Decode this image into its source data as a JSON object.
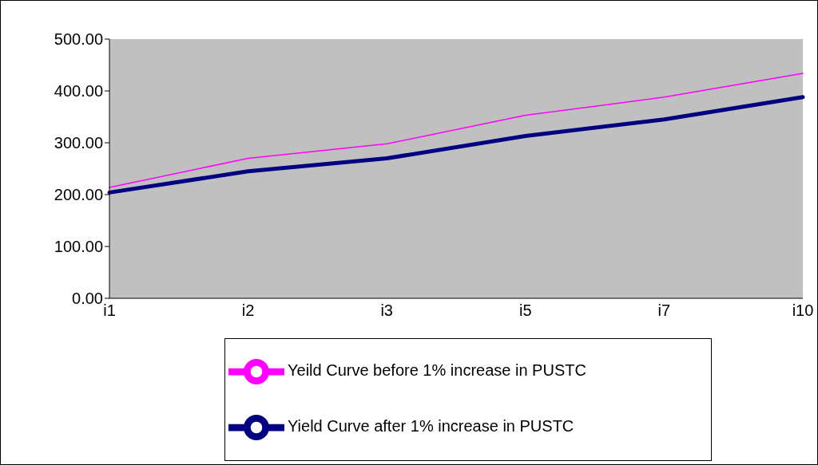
{
  "chart_data": {
    "type": "line",
    "categories": [
      "i1",
      "i2",
      "i3",
      "i5",
      "i7",
      "i10"
    ],
    "series": [
      {
        "name": "Yield Curve after 1% increase in PUSTC",
        "color": "#000080",
        "values": [
          204,
          245,
          270,
          313,
          345,
          388
        ]
      },
      {
        "name": "Yeild Curve before 1% increase in PUSTC",
        "color": "#ff00ff",
        "values": [
          214,
          270,
          298,
          353,
          388,
          434
        ]
      }
    ],
    "ylim": [
      0,
      500
    ],
    "yticks": [
      {
        "value": 0,
        "label": "0.00"
      },
      {
        "value": 100,
        "label": "100.00"
      },
      {
        "value": 200,
        "label": "200.00"
      },
      {
        "value": 300,
        "label": "300.00"
      },
      {
        "value": 400,
        "label": "400.00"
      },
      {
        "value": 500,
        "label": "500.00"
      }
    ],
    "grid": false,
    "legend": "bottom",
    "marker": "none",
    "line_style": "solid"
  }
}
